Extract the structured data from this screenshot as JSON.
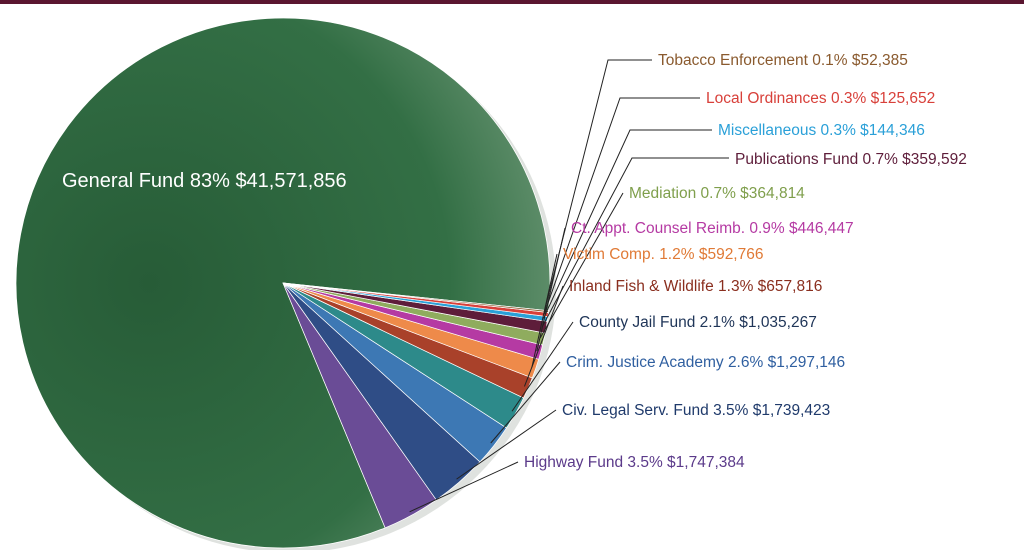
{
  "chart_data": {
    "type": "pie",
    "slices": [
      {
        "label": "General Fund",
        "percent": "83%",
        "amount": "$41,571,856",
        "value": 41571856,
        "color": "#2f6a41"
      },
      {
        "label": "Highway Fund",
        "percent": "3.5%",
        "amount": "$1,747,384",
        "value": 1747384,
        "color": "#6a4c96"
      },
      {
        "label": "Civ. Legal Serv.  Fund",
        "percent": "3.5%",
        "amount": "$1,739,423",
        "value": 1739423,
        "color": "#2f4d86"
      },
      {
        "label": "Crim. Justice Academy",
        "percent": "2.6%",
        "amount": "$1,297,146",
        "value": 1297146,
        "color": "#3d78b4"
      },
      {
        "label": "County Jail Fund",
        "percent": "2.1%",
        "amount": "$1,035,267",
        "value": 1035267,
        "color": "#2d8a8a"
      },
      {
        "label": "Inland Fish & Wildlife",
        "percent": "1.3%",
        "amount": "$657,816",
        "value": 657816,
        "color": "#a9412a"
      },
      {
        "label": "Victim Comp.",
        "percent": "1.2%",
        "amount": "$592,766",
        "value": 592766,
        "color": "#ee8a4a"
      },
      {
        "label": "Ct.  Appt. Counsel Reimb.",
        "percent": "0.9%",
        "amount": "$446,447",
        "value": 446447,
        "color": "#b53aa3"
      },
      {
        "label": "Mediation",
        "percent": "0.7%",
        "amount": "$364,814",
        "value": 364814,
        "color": "#8fac5e"
      },
      {
        "label": "Publications Fund",
        "percent": "0.7%",
        "amount": "$359,592",
        "value": 359592,
        "color": "#5e1d3a"
      },
      {
        "label": "Miscellaneous",
        "percent": "0.3%",
        "amount": "$144,346",
        "value": 144346,
        "color": "#2aa0d8"
      },
      {
        "label": "Local Ordinances",
        "percent": "0.3%",
        "amount": "$125,652",
        "value": 125652,
        "color": "#d8403a"
      },
      {
        "label": "Tobacco Enforcement",
        "percent": "0.1%",
        "amount": "$52,385",
        "value": 52385,
        "color": "#8a5a2e"
      }
    ]
  },
  "colors": {
    "top_rule": "#5a1630",
    "leader": "#222222"
  }
}
